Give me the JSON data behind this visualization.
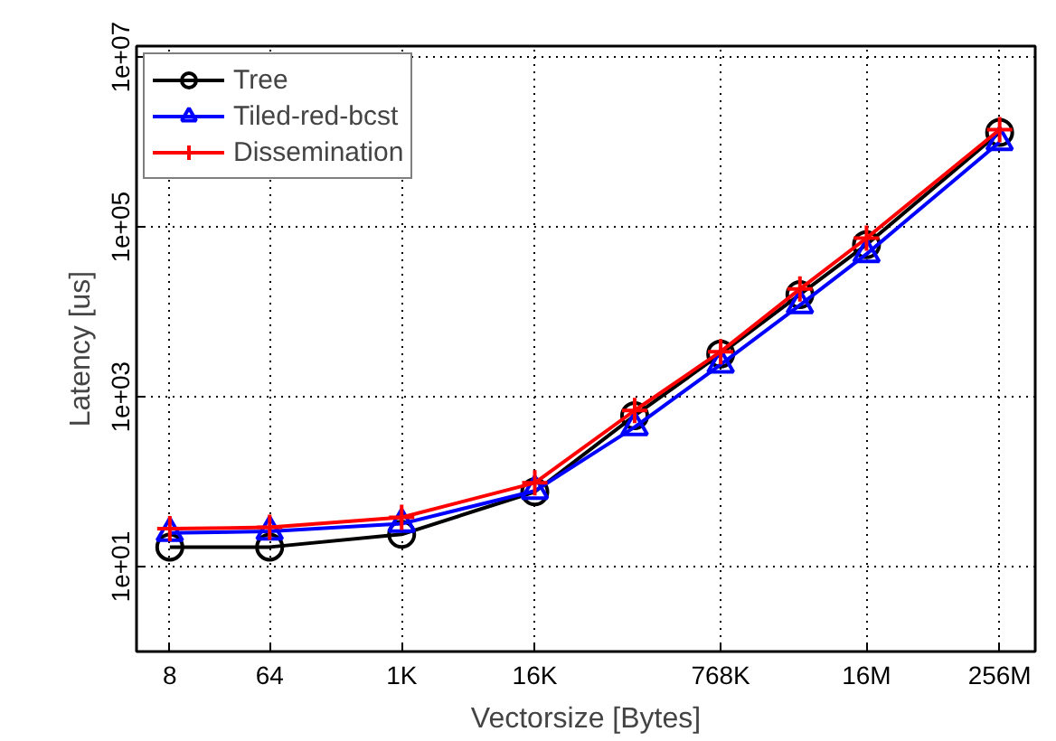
{
  "chart_data": {
    "type": "line",
    "xlabel": "Vectorsize [Bytes]",
    "ylabel": "Latency [us]",
    "x": [
      8,
      64,
      1000,
      16000,
      128000,
      768000,
      4000000,
      16000000,
      256000000
    ],
    "series": [
      {
        "name": "Tree",
        "color": "#000000",
        "marker": "circle",
        "values": [
          17,
          17,
          24,
          76,
          600,
          3200,
          16000,
          62000,
          1300000
        ]
      },
      {
        "name": "Tiled-red-bcst",
        "color": "#0000ff",
        "marker": "triangle",
        "values": [
          25,
          26,
          32,
          78,
          440,
          2400,
          12000,
          48000,
          1000000
        ]
      },
      {
        "name": "Dissemination",
        "color": "#ff0000",
        "marker": "cross",
        "values": [
          28,
          29,
          38,
          97,
          690,
          3400,
          18600,
          74000,
          1400000
        ]
      }
    ],
    "log": "xy",
    "xlim": [
      4,
      536870912
    ],
    "ylim": [
      1,
      13500000
    ],
    "xticks": [
      8,
      64,
      {
        "value": 1000,
        "label": "1K"
      },
      {
        "value": 16000,
        "label": "16K"
      },
      {
        "value": 768000,
        "label": "768K"
      },
      {
        "value": 16000000,
        "label": "16M"
      },
      {
        "value": 256000000,
        "label": "256M"
      }
    ],
    "yticks": [
      {
        "value": 10,
        "label": "1e+01"
      },
      {
        "value": 1000,
        "label": "1e+03"
      },
      {
        "value": 100000,
        "label": "1e+05"
      },
      {
        "value": 10000000,
        "label": "1e+07"
      }
    ],
    "grid": true,
    "legend": "top left",
    "line_style": "solid"
  }
}
